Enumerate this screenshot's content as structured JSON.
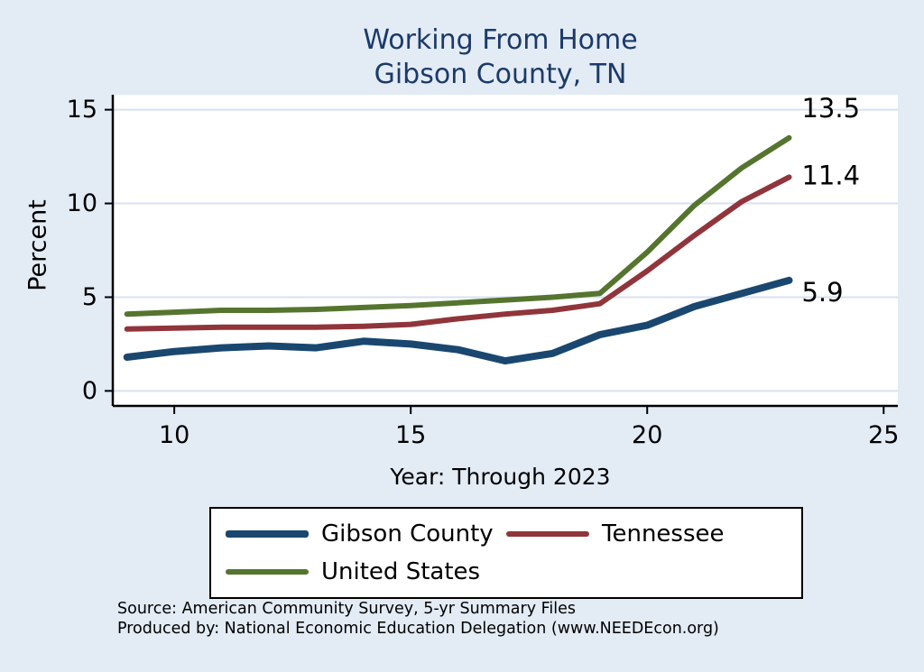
{
  "title": {
    "line1": "Working From Home",
    "line2": "Gibson County, TN"
  },
  "source": {
    "line1": "Source: American Community Survey, 5-yr Summary Files",
    "line2": "Produced by: National Economic Education Delegation (www.NEEDEcon.org)"
  },
  "colors": {
    "background": "#e3ebf5",
    "plot_background": "#ffffff",
    "gridline": "#d7e1f0",
    "axis": "#000000",
    "title": "#1b3a6a"
  },
  "chart_data": {
    "type": "line",
    "title": "Working From Home — Gibson County, TN",
    "xlabel": "Year: Through 2023",
    "ylabel": "Percent",
    "x": [
      9,
      10,
      11,
      12,
      13,
      14,
      15,
      16,
      17,
      18,
      19,
      20,
      21,
      22,
      23
    ],
    "series": [
      {
        "name": "Gibson County",
        "color": "#1a476f",
        "width": 8,
        "values": [
          1.8,
          2.1,
          2.3,
          2.4,
          2.3,
          2.65,
          2.5,
          2.2,
          1.6,
          2.0,
          3.0,
          3.5,
          4.5,
          5.2,
          5.9
        ],
        "end_label": "5.9",
        "end_label_dy": 13
      },
      {
        "name": "Tennessee",
        "color": "#90353b",
        "width": 6,
        "values": [
          3.3,
          3.35,
          3.4,
          3.4,
          3.4,
          3.45,
          3.55,
          3.85,
          4.1,
          4.3,
          4.65,
          6.4,
          8.3,
          10.1,
          11.4
        ],
        "end_label": "11.4",
        "end_label_dy": -2
      },
      {
        "name": "United States",
        "color": "#55752f",
        "width": 6,
        "values": [
          4.1,
          4.2,
          4.3,
          4.3,
          4.35,
          4.45,
          4.55,
          4.7,
          4.85,
          5.0,
          5.2,
          7.4,
          9.9,
          11.9,
          13.5
        ],
        "end_label": "13.5",
        "end_label_dy": -33
      }
    ],
    "xticks": [
      10,
      15,
      20,
      25
    ],
    "yticks": [
      0,
      5,
      10,
      15
    ],
    "xlim": [
      8.7,
      25.3
    ],
    "ylim": [
      -0.8,
      15.8
    ],
    "grid": true,
    "legend_position": "bottom"
  }
}
